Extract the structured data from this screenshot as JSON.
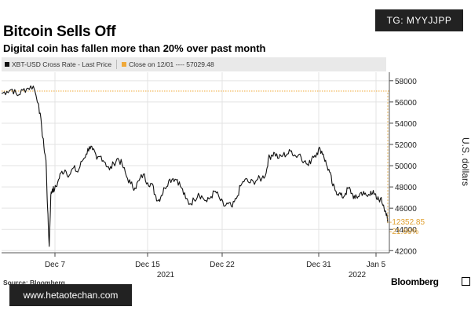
{
  "title": "Bitcoin Sells Off",
  "subtitle": "Digital coin has fallen more than 20% over past month",
  "tg_badge": "TG: MYYJJPP",
  "watermark": "www.hetaotechan.com",
  "source": "Source: Bloomberg",
  "brand": "Bloomberg",
  "legend": [
    {
      "label": "XBT-USD Cross Rate - Last Price",
      "color": "#111111"
    },
    {
      "label": "Close on 12/01 ---- 57029.48",
      "color": "#f0a93a"
    }
  ],
  "colors": {
    "line": "#111111",
    "reference": "#f0a93a",
    "grid": "#e3e3e3",
    "annotation": "#e0a030"
  },
  "chart_data": {
    "type": "line",
    "ylabel": "U.S. dollars",
    "ylim": [
      41800,
      58800
    ],
    "y_ticks": [
      "42000",
      "44000",
      "46000",
      "48000",
      "50000",
      "52000",
      "54000",
      "56000",
      "58000"
    ],
    "x_ticks": [
      "Dec 7",
      "Dec 15",
      "Dec 22",
      "Dec 31",
      "Jan 5"
    ],
    "x_years": [
      "2021",
      "2022"
    ],
    "xlim_days": [
      0,
      36.5
    ],
    "reference_line": {
      "label": "Close on 12/01",
      "value": 57029.48
    },
    "annotations": [
      "-12352.85",
      "-21.66%"
    ],
    "grid": true,
    "series": [
      {
        "name": "XBT-USD Cross Rate - Last Price",
        "points": [
          [
            0.0,
            56800
          ],
          [
            0.5,
            57000
          ],
          [
            1.0,
            57200
          ],
          [
            1.5,
            56600
          ],
          [
            2.0,
            57100
          ],
          [
            2.5,
            57300
          ],
          [
            3.0,
            57500
          ],
          [
            3.5,
            55800
          ],
          [
            3.8,
            53500
          ],
          [
            4.0,
            51800
          ],
          [
            4.2,
            50500
          ],
          [
            4.35,
            46000
          ],
          [
            4.5,
            42400
          ],
          [
            4.65,
            47200
          ],
          [
            4.8,
            47800
          ],
          [
            5.0,
            47700
          ],
          [
            5.3,
            48400
          ],
          [
            5.6,
            49300
          ],
          [
            6.0,
            49600
          ],
          [
            6.4,
            49100
          ],
          [
            6.8,
            49800
          ],
          [
            7.2,
            49400
          ],
          [
            7.6,
            50400
          ],
          [
            8.0,
            51100
          ],
          [
            8.3,
            51800
          ],
          [
            8.6,
            51500
          ],
          [
            9.0,
            50600
          ],
          [
            9.4,
            50900
          ],
          [
            9.8,
            50300
          ],
          [
            10.2,
            49600
          ],
          [
            10.6,
            50200
          ],
          [
            11.0,
            50700
          ],
          [
            11.4,
            50100
          ],
          [
            11.8,
            49000
          ],
          [
            12.2,
            48300
          ],
          [
            12.6,
            47900
          ],
          [
            13.0,
            48600
          ],
          [
            13.4,
            49200
          ],
          [
            13.8,
            48400
          ],
          [
            14.2,
            48300
          ],
          [
            14.5,
            47300
          ],
          [
            14.8,
            46700
          ],
          [
            15.1,
            47200
          ],
          [
            15.4,
            47900
          ],
          [
            15.8,
            48600
          ],
          [
            16.2,
            48800
          ],
          [
            16.6,
            48700
          ],
          [
            17.0,
            47900
          ],
          [
            17.4,
            46900
          ],
          [
            17.8,
            46400
          ],
          [
            18.2,
            46800
          ],
          [
            18.6,
            47400
          ],
          [
            19.0,
            47000
          ],
          [
            19.4,
            46600
          ],
          [
            19.8,
            47100
          ],
          [
            20.2,
            47600
          ],
          [
            20.6,
            46900
          ],
          [
            21.0,
            46200
          ],
          [
            21.4,
            46400
          ],
          [
            21.8,
            46100
          ],
          [
            22.2,
            46900
          ],
          [
            22.6,
            48100
          ],
          [
            23.0,
            48700
          ],
          [
            23.4,
            48400
          ],
          [
            23.8,
            48500
          ],
          [
            24.2,
            48700
          ],
          [
            24.6,
            48800
          ],
          [
            25.0,
            49300
          ],
          [
            25.2,
            50600
          ],
          [
            25.5,
            51000
          ],
          [
            25.8,
            51200
          ],
          [
            26.2,
            50700
          ],
          [
            26.6,
            51000
          ],
          [
            27.0,
            51100
          ],
          [
            27.4,
            51400
          ],
          [
            27.8,
            50900
          ],
          [
            28.2,
            51100
          ],
          [
            28.6,
            50400
          ],
          [
            29.0,
            50000
          ],
          [
            29.4,
            50900
          ],
          [
            29.8,
            51200
          ],
          [
            30.1,
            51600
          ],
          [
            30.4,
            51100
          ],
          [
            30.7,
            50100
          ],
          [
            31.0,
            49400
          ],
          [
            31.3,
            48100
          ],
          [
            31.6,
            47600
          ],
          [
            31.9,
            47400
          ],
          [
            32.2,
            47000
          ],
          [
            32.5,
            47400
          ],
          [
            32.8,
            47900
          ],
          [
            33.1,
            47400
          ],
          [
            33.4,
            46900
          ],
          [
            33.7,
            47100
          ],
          [
            34.0,
            47500
          ],
          [
            34.3,
            47300
          ],
          [
            34.6,
            47100
          ],
          [
            34.9,
            47600
          ],
          [
            35.2,
            47300
          ],
          [
            35.5,
            46800
          ],
          [
            35.8,
            46900
          ],
          [
            36.1,
            46300
          ],
          [
            36.3,
            45700
          ],
          [
            36.5,
            44600
          ]
        ]
      }
    ]
  }
}
